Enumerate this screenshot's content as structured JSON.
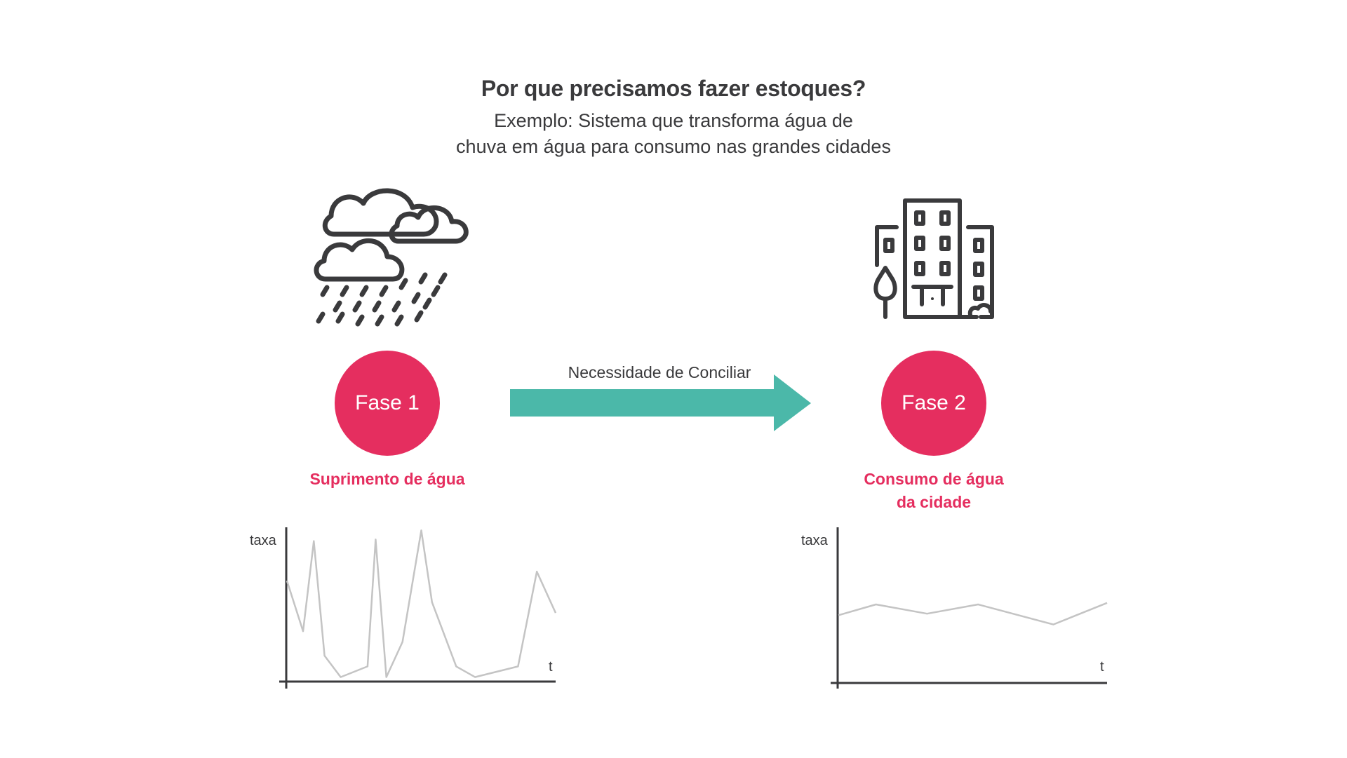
{
  "header": {
    "title": "Por que precisamos fazer estoques?",
    "subtitle_line1": "Exemplo: Sistema que transforma água de",
    "subtitle_line2": "chuva em água para consumo nas grandes cidades"
  },
  "colors": {
    "accent": "#e52e5f",
    "arrow": "#4bb8a9",
    "text": "#3a3a3c",
    "line": "#c4c4c4"
  },
  "icons": {
    "left": "rain-cloud-icon",
    "right": "city-buildings-icon"
  },
  "phase1": {
    "label": "Fase 1",
    "caption": "Suprimento de água"
  },
  "phase2": {
    "label": "Fase 2",
    "caption_line1": "Consumo de água",
    "caption_line2": "da cidade"
  },
  "arrow": {
    "label": "Necessidade de Conciliar"
  },
  "chart_data": [
    {
      "type": "line",
      "title": "",
      "xlabel": "t",
      "ylabel": "taxa",
      "series": [
        {
          "x": [
            0,
            0.06,
            0.1,
            0.14,
            0.2,
            0.3,
            0.33,
            0.37,
            0.43,
            0.5,
            0.54,
            0.63,
            0.7,
            0.86,
            0.93,
            1.0
          ],
          "values": [
            0.65,
            0.32,
            0.91,
            0.16,
            0.02,
            0.09,
            0.92,
            0.02,
            0.25,
            0.98,
            0.51,
            0.09,
            0.02,
            0.09,
            0.71,
            0.44
          ]
        }
      ]
    },
    {
      "type": "line",
      "title": "",
      "xlabel": "t",
      "ylabel": "taxa",
      "series": [
        {
          "x": [
            0,
            0.14,
            0.33,
            0.52,
            0.8,
            1.0
          ],
          "values": [
            0.43,
            0.5,
            0.44,
            0.5,
            0.37,
            0.51
          ]
        }
      ]
    }
  ]
}
